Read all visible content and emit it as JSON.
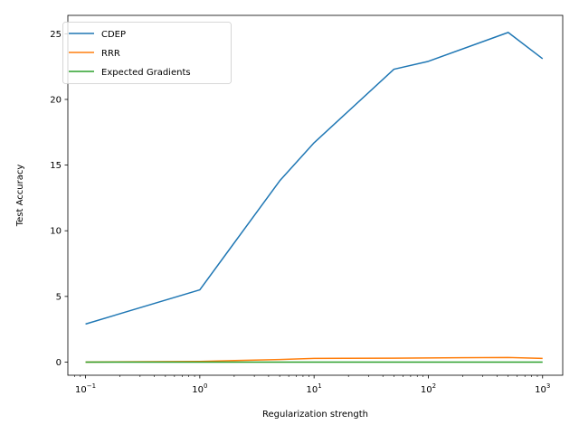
{
  "chart_data": {
    "type": "line",
    "xscale": "log",
    "xlabel": "Regularization strength",
    "ylabel": "Test Accuracy",
    "xlim": [
      0.07,
      1500
    ],
    "ylim": [
      -1.0,
      26.4
    ],
    "grid": false,
    "legend_position": "top-left",
    "xticks": [
      {
        "value": 0.1,
        "base": "10",
        "exp": "−1"
      },
      {
        "value": 1,
        "base": "10",
        "exp": "0"
      },
      {
        "value": 10,
        "base": "10",
        "exp": "1"
      },
      {
        "value": 100,
        "base": "10",
        "exp": "2"
      },
      {
        "value": 1000,
        "base": "10",
        "exp": "3"
      }
    ],
    "yticks": [
      {
        "value": 0,
        "label": "0"
      },
      {
        "value": 5,
        "label": "5"
      },
      {
        "value": 10,
        "label": "10"
      },
      {
        "value": 15,
        "label": "15"
      },
      {
        "value": 20,
        "label": "20"
      },
      {
        "value": 25,
        "label": "25"
      }
    ],
    "x": [
      0.1,
      1,
      5,
      10,
      50,
      100,
      500,
      1000
    ],
    "series": [
      {
        "name": "CDEP",
        "color": "#1f77b4",
        "values": [
          2.9,
          5.5,
          13.8,
          16.7,
          22.3,
          22.9,
          25.1,
          23.1
        ]
      },
      {
        "name": "RRR",
        "color": "#ff7f0e",
        "values": [
          0.0,
          0.05,
          0.2,
          0.28,
          0.3,
          0.32,
          0.35,
          0.28
        ]
      },
      {
        "name": "Expected Gradients",
        "color": "#2ca02c",
        "values": [
          0.0,
          0.0,
          0.0,
          0.0,
          0.0,
          0.0,
          0.0,
          0.0
        ]
      }
    ]
  }
}
